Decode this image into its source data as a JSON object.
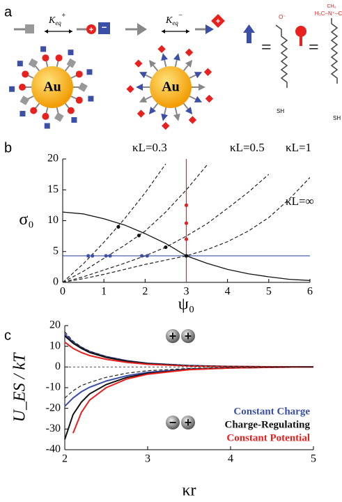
{
  "diagram": {
    "label": "a",
    "keq_plus": {
      "k": "K",
      "sub": "eq",
      "sup": "+"
    },
    "keq_minus": {
      "k": "K",
      "sub": "eq",
      "sup": "−"
    },
    "signs": [
      "+",
      "−",
      "+"
    ],
    "core": [
      "Au",
      "Au"
    ],
    "equals": [
      "=",
      "="
    ],
    "chem": [
      "O⁻",
      "SH",
      "CH₃",
      "H₃C–N⁺–CH₃",
      "SH"
    ]
  },
  "chart_data": [
    {
      "type": "line",
      "label": "b",
      "xlabel": "ψ₀",
      "ylabel": "σ₀",
      "xlim": [
        0,
        6
      ],
      "ylim": [
        0,
        20
      ],
      "xticks": [
        0,
        1,
        2,
        3,
        4,
        5,
        6
      ],
      "yticks": [
        0,
        5,
        10,
        15,
        20
      ],
      "x": [
        0,
        0.5,
        1,
        1.5,
        2,
        2.5,
        3,
        3.5,
        4,
        4.5,
        5,
        5.5,
        6
      ],
      "series": [
        {
          "name": "κL=0.3",
          "color": "#222",
          "dash": true,
          "values": [
            0,
            3,
            6.5,
            10.3,
            14.5,
            19.2,
            null,
            null,
            null,
            null,
            null,
            null,
            null
          ]
        },
        {
          "name": "κL=0.5",
          "color": "#222",
          "dash": true,
          "values": [
            0,
            1.8,
            3.9,
            6,
            8.3,
            11.4,
            15,
            19,
            null,
            null,
            null,
            null,
            null
          ]
        },
        {
          "name": "κL=1",
          "color": "#222",
          "dash": true,
          "values": [
            0,
            0.9,
            2,
            3.1,
            4.3,
            5.7,
            7.5,
            9.5,
            12,
            14.6,
            17.5,
            null,
            null
          ]
        },
        {
          "name": "κL=∞",
          "color": "#222",
          "dash": true,
          "values": [
            0,
            0.6,
            1.3,
            2.1,
            2.9,
            3.6,
            4.3,
            5.3,
            6.6,
            8.3,
            10.5,
            13.5,
            17
          ]
        },
        {
          "color": "#111",
          "values": [
            11.4,
            11.1,
            10.3,
            9.3,
            7.9,
            6.3,
            4.3,
            3.1,
            2.1,
            1.4,
            0.9,
            0.5,
            0.3
          ]
        }
      ],
      "vline": {
        "value": 3,
        "color": "#e8201e"
      },
      "hline": {
        "value": 4.3,
        "color": "#3b4fa8"
      },
      "markers": [
        {
          "color": "#e8201e",
          "x": [
            3,
            3,
            3,
            3
          ],
          "values": [
            12.5,
            9.6,
            7,
            4.3
          ]
        },
        {
          "color": "#3b4fa8",
          "x": [
            0.62,
            0.72,
            1.05,
            1.15,
            1.92,
            2.05
          ],
          "values": [
            4.3,
            4.3,
            4.3,
            4.3,
            4.3,
            4.3
          ]
        },
        {
          "color": "#111",
          "x": [
            1.35,
            1.85,
            2.5,
            3
          ],
          "values": [
            9,
            7.6,
            5.7,
            4.3
          ]
        }
      ]
    },
    {
      "type": "line",
      "label": "c",
      "xlabel": "κr",
      "ylabel": "U_ES / kT",
      "xlim": [
        2,
        5
      ],
      "ylim": [
        -40,
        20
      ],
      "xticks": [
        2,
        3,
        4,
        5
      ],
      "yticks": [
        -40,
        -30,
        -20,
        -10,
        0,
        10,
        20
      ],
      "x": [
        2,
        2.1,
        2.2,
        2.3,
        2.5,
        2.75,
        3,
        3.5,
        4,
        4.5,
        5
      ],
      "series": [
        {
          "name": "Constant Charge",
          "color": "#3b4fa8",
          "values": [
            16,
            12,
            9.5,
            7.5,
            5,
            3,
            1.8,
            0.7,
            0.25,
            0.1,
            0
          ]
        },
        {
          "name": "Charge-Regulating",
          "color": "#111",
          "values": [
            15,
            11.5,
            9,
            7,
            4.6,
            2.7,
            1.6,
            0.6,
            0.2,
            0.1,
            0
          ]
        },
        {
          "name": "Constant Potential",
          "color": "#e8201e",
          "values": [
            12,
            9,
            7,
            5.5,
            3.7,
            2.2,
            1.3,
            0.5,
            0.2,
            0.1,
            0
          ]
        },
        {
          "color": "#3b4fa8",
          "values": [
            -19,
            -15,
            -12,
            -9.8,
            -6.8,
            -4.2,
            -2.6,
            -1,
            -0.4,
            -0.15,
            0
          ]
        },
        {
          "color": "#111",
          "values": [
            -35,
            -23,
            -17,
            -13,
            -8.5,
            -5,
            -3.1,
            -1.2,
            -0.45,
            -0.15,
            0
          ]
        },
        {
          "color": "#e8201e",
          "values": [
            null,
            -32,
            -22,
            -16,
            -10,
            -5.8,
            -3.5,
            -1.3,
            -0.5,
            -0.15,
            0
          ]
        },
        {
          "color": "#222",
          "dash": true,
          "values": [
            17,
            12.5,
            9.7,
            7.6,
            5,
            3,
            1.8,
            0.7,
            0.25,
            0.1,
            0
          ]
        },
        {
          "color": "#222",
          "dash": true,
          "values": [
            -15,
            -11.5,
            -9,
            -7.5,
            -5,
            -3,
            -1.8,
            -0.7,
            -0.25,
            -0.1,
            0
          ]
        }
      ],
      "hline": {
        "value": 0,
        "color": "#333",
        "dash": true
      },
      "legend": "lower right",
      "icons": [
        "+",
        "+",
        "−",
        "+"
      ]
    }
  ]
}
